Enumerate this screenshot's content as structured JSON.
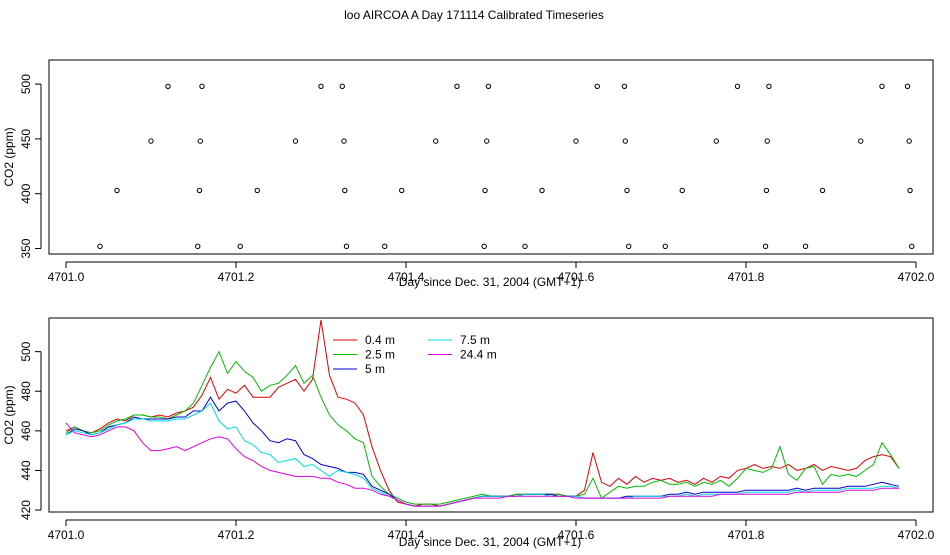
{
  "title": "loo AIRCOA A  Day 171114  Calibrated Timeseries",
  "colors": {
    "0.4 m": "#dd0000",
    "2.5 m": "#00bb00",
    "5 m": "#0000cc",
    "7.5 m": "#00dddd",
    "24.4 m": "#dd00dd",
    "frame": "#000000"
  },
  "chart_data": [
    {
      "type": "line",
      "title": "loo AIRCOA A  Day 171114  Calibrated Timeseries",
      "xlabel": "Day since Dec. 31, 2004 (GMT+1)",
      "ylabel": "CO2 (ppm)",
      "xlim": [
        4700.98,
        4702.02
      ],
      "ylim": [
        345,
        522
      ],
      "x_ticks": [
        4701.0,
        4701.2,
        4701.4,
        4701.6,
        4701.8,
        4702.0
      ],
      "x_tick_labels": [
        "4701.0",
        "4701.2",
        "4701.4",
        "4701.6",
        "4701.8",
        "4702.0"
      ],
      "y_ticks": [
        350,
        400,
        450,
        500
      ],
      "y_tick_labels": [
        "350",
        "400",
        "450",
        "500"
      ],
      "legend": false,
      "grid": false,
      "series_names_ref": [
        "0.4 m",
        "2.5 m",
        "5 m",
        "7.5 m",
        "24.4 m"
      ],
      "scatter_points": [
        {
          "x": 4701.04,
          "y": 352
        },
        {
          "x": 4701.06,
          "y": 403
        },
        {
          "x": 4701.1,
          "y": 448
        },
        {
          "x": 4701.12,
          "y": 498
        },
        {
          "x": 4701.155,
          "y": 352
        },
        {
          "x": 4701.157,
          "y": 403
        },
        {
          "x": 4701.158,
          "y": 448
        },
        {
          "x": 4701.16,
          "y": 498
        },
        {
          "x": 4701.205,
          "y": 352
        },
        {
          "x": 4701.225,
          "y": 403
        },
        {
          "x": 4701.27,
          "y": 448
        },
        {
          "x": 4701.3,
          "y": 498
        },
        {
          "x": 4701.325,
          "y": 498
        },
        {
          "x": 4701.327,
          "y": 448
        },
        {
          "x": 4701.328,
          "y": 403
        },
        {
          "x": 4701.33,
          "y": 352
        },
        {
          "x": 4701.375,
          "y": 352
        },
        {
          "x": 4701.395,
          "y": 403
        },
        {
          "x": 4701.435,
          "y": 448
        },
        {
          "x": 4701.46,
          "y": 498
        },
        {
          "x": 4701.492,
          "y": 352
        },
        {
          "x": 4701.493,
          "y": 403
        },
        {
          "x": 4701.495,
          "y": 448
        },
        {
          "x": 4701.497,
          "y": 498
        },
        {
          "x": 4701.54,
          "y": 352
        },
        {
          "x": 4701.56,
          "y": 403
        },
        {
          "x": 4701.6,
          "y": 448
        },
        {
          "x": 4701.625,
          "y": 498
        },
        {
          "x": 4701.657,
          "y": 498
        },
        {
          "x": 4701.658,
          "y": 448
        },
        {
          "x": 4701.66,
          "y": 403
        },
        {
          "x": 4701.662,
          "y": 352
        },
        {
          "x": 4701.705,
          "y": 352
        },
        {
          "x": 4701.725,
          "y": 403
        },
        {
          "x": 4701.765,
          "y": 448
        },
        {
          "x": 4701.79,
          "y": 498
        },
        {
          "x": 4701.823,
          "y": 352
        },
        {
          "x": 4701.824,
          "y": 403
        },
        {
          "x": 4701.825,
          "y": 448
        },
        {
          "x": 4701.827,
          "y": 498
        },
        {
          "x": 4701.87,
          "y": 352
        },
        {
          "x": 4701.89,
          "y": 403
        },
        {
          "x": 4701.935,
          "y": 448
        },
        {
          "x": 4701.96,
          "y": 498
        },
        {
          "x": 4701.99,
          "y": 498
        },
        {
          "x": 4701.992,
          "y": 448
        },
        {
          "x": 4701.993,
          "y": 403
        },
        {
          "x": 4701.995,
          "y": 352
        }
      ]
    },
    {
      "type": "line",
      "xlabel": "Day since Dec. 31, 2004 (GMT+1)",
      "ylabel": "CO2 (ppm)",
      "xlim": [
        4700.98,
        4702.02
      ],
      "ylim": [
        419,
        517
      ],
      "x_ticks": [
        4701.0,
        4701.2,
        4701.4,
        4701.6,
        4701.8,
        4702.0
      ],
      "x_tick_labels": [
        "4701.0",
        "4701.2",
        "4701.4",
        "4701.6",
        "4701.8",
        "4702.0"
      ],
      "y_ticks": [
        420,
        440,
        460,
        480,
        500
      ],
      "y_tick_labels": [
        "420",
        "440",
        "460",
        "480",
        "500"
      ],
      "grid": false,
      "legend_position": "top-center",
      "legend": [
        {
          "name": "0.4 m",
          "color": "#dd0000"
        },
        {
          "name": "2.5 m",
          "color": "#00bb00"
        },
        {
          "name": "5 m",
          "color": "#0000cc"
        },
        {
          "name": "7.5 m",
          "color": "#00dddd"
        },
        {
          "name": "24.4 m",
          "color": "#dd00dd"
        }
      ],
      "x": [
        4701.0,
        4701.01,
        4701.02,
        4701.03,
        4701.04,
        4701.05,
        4701.06,
        4701.07,
        4701.08,
        4701.09,
        4701.1,
        4701.11,
        4701.12,
        4701.13,
        4701.14,
        4701.15,
        4701.16,
        4701.17,
        4701.18,
        4701.19,
        4701.2,
        4701.21,
        4701.22,
        4701.23,
        4701.24,
        4701.25,
        4701.26,
        4701.27,
        4701.28,
        4701.29,
        4701.3,
        4701.31,
        4701.32,
        4701.33,
        4701.34,
        4701.35,
        4701.36,
        4701.37,
        4701.38,
        4701.39,
        4701.4,
        4701.41,
        4701.42,
        4701.43,
        4701.44,
        4701.45,
        4701.46,
        4701.47,
        4701.48,
        4701.49,
        4701.5,
        4701.51,
        4701.52,
        4701.53,
        4701.54,
        4701.55,
        4701.56,
        4701.57,
        4701.58,
        4701.59,
        4701.6,
        4701.61,
        4701.62,
        4701.63,
        4701.64,
        4701.65,
        4701.66,
        4701.67,
        4701.68,
        4701.69,
        4701.7,
        4701.71,
        4701.72,
        4701.73,
        4701.74,
        4701.75,
        4701.76,
        4701.77,
        4701.78,
        4701.79,
        4701.8,
        4701.81,
        4701.82,
        4701.83,
        4701.84,
        4701.85,
        4701.86,
        4701.87,
        4701.88,
        4701.89,
        4701.9,
        4701.91,
        4701.92,
        4701.93,
        4701.94,
        4701.95,
        4701.96,
        4701.97,
        4701.98
      ],
      "series": [
        {
          "name": "0.4 m",
          "values": [
            460,
            462,
            460,
            459,
            461,
            464,
            466,
            465,
            468,
            468,
            467,
            468,
            467,
            469,
            470,
            472,
            478,
            487,
            476,
            481,
            479,
            483,
            477,
            477,
            477,
            482,
            484,
            486,
            480,
            486,
            516,
            488,
            477,
            476,
            474,
            468,
            452,
            440,
            430,
            424,
            423,
            422,
            423,
            423,
            422,
            423,
            424,
            425,
            426,
            427,
            427,
            427,
            427,
            428,
            428,
            428,
            428,
            428,
            428,
            427,
            427,
            430,
            449,
            434,
            432,
            436,
            433,
            437,
            434,
            436,
            435,
            436,
            434,
            435,
            433,
            436,
            434,
            437,
            436,
            440,
            441,
            443,
            441,
            442,
            441,
            443,
            440,
            441,
            443,
            440,
            442,
            441,
            440,
            441,
            445,
            447,
            448,
            447,
            441
          ]
        },
        {
          "name": "2.5 m",
          "values": [
            459,
            462,
            460,
            459,
            460,
            463,
            465,
            466,
            468,
            468,
            467,
            467,
            466,
            468,
            470,
            474,
            483,
            492,
            500,
            489,
            495,
            490,
            487,
            480,
            483,
            484,
            488,
            493,
            484,
            488,
            477,
            468,
            463,
            460,
            456,
            454,
            437,
            432,
            428,
            426,
            424,
            423,
            423,
            423,
            423,
            424,
            425,
            426,
            427,
            428,
            427,
            427,
            427,
            428,
            428,
            428,
            428,
            428,
            428,
            427,
            427,
            428,
            436,
            426,
            429,
            432,
            431,
            432,
            432,
            434,
            435,
            433,
            433,
            434,
            432,
            434,
            433,
            435,
            432,
            436,
            441,
            440,
            439,
            441,
            452,
            438,
            435,
            441,
            442,
            433,
            438,
            437,
            438,
            437,
            440,
            443,
            454,
            448,
            441
          ]
        },
        {
          "name": "5 m",
          "values": [
            458,
            461,
            460,
            458,
            459,
            462,
            463,
            464,
            467,
            466,
            466,
            466,
            466,
            467,
            467,
            470,
            470,
            477,
            470,
            474,
            475,
            470,
            464,
            460,
            455,
            454,
            456,
            455,
            448,
            446,
            443,
            442,
            441,
            439,
            439,
            438,
            432,
            430,
            428,
            425,
            423,
            422,
            422,
            422,
            422,
            423,
            424,
            425,
            426,
            427,
            427,
            427,
            427,
            427,
            428,
            428,
            428,
            428,
            427,
            427,
            427,
            426,
            426,
            426,
            426,
            426,
            427,
            427,
            427,
            427,
            427,
            428,
            428,
            429,
            428,
            429,
            429,
            429,
            429,
            429,
            430,
            430,
            430,
            430,
            430,
            430,
            431,
            430,
            431,
            431,
            431,
            431,
            432,
            432,
            432,
            433,
            434,
            433,
            432
          ]
        },
        {
          "name": "7.5 m",
          "values": [
            458,
            460,
            459,
            458,
            459,
            461,
            463,
            464,
            466,
            466,
            465,
            465,
            465,
            466,
            466,
            468,
            470,
            474,
            465,
            461,
            462,
            455,
            453,
            449,
            448,
            444,
            445,
            446,
            442,
            443,
            440,
            437,
            440,
            439,
            438,
            436,
            431,
            429,
            427,
            425,
            423,
            422,
            422,
            422,
            422,
            423,
            424,
            425,
            426,
            427,
            427,
            427,
            427,
            427,
            428,
            428,
            428,
            427,
            427,
            427,
            427,
            426,
            426,
            426,
            426,
            426,
            426,
            427,
            427,
            427,
            427,
            427,
            427,
            428,
            427,
            428,
            428,
            428,
            428,
            428,
            429,
            429,
            429,
            429,
            429,
            429,
            430,
            429,
            430,
            430,
            430,
            430,
            431,
            431,
            431,
            431,
            432,
            432,
            431
          ]
        },
        {
          "name": "24.4 m",
          "values": [
            464,
            459,
            458,
            457,
            458,
            460,
            462,
            462,
            460,
            454,
            450,
            450,
            451,
            452,
            450,
            452,
            454,
            456,
            457,
            456,
            451,
            447,
            445,
            442,
            440,
            439,
            438,
            437,
            437,
            437,
            436,
            436,
            434,
            433,
            431,
            431,
            430,
            428,
            427,
            425,
            423,
            422,
            422,
            422,
            422,
            423,
            424,
            425,
            426,
            426,
            426,
            426,
            427,
            427,
            427,
            427,
            427,
            427,
            427,
            427,
            426,
            426,
            426,
            426,
            426,
            426,
            426,
            426,
            426,
            426,
            426,
            427,
            427,
            427,
            427,
            427,
            427,
            428,
            428,
            428,
            428,
            428,
            428,
            428,
            428,
            428,
            429,
            429,
            429,
            429,
            429,
            429,
            430,
            430,
            430,
            430,
            431,
            431,
            431
          ]
        }
      ]
    }
  ]
}
